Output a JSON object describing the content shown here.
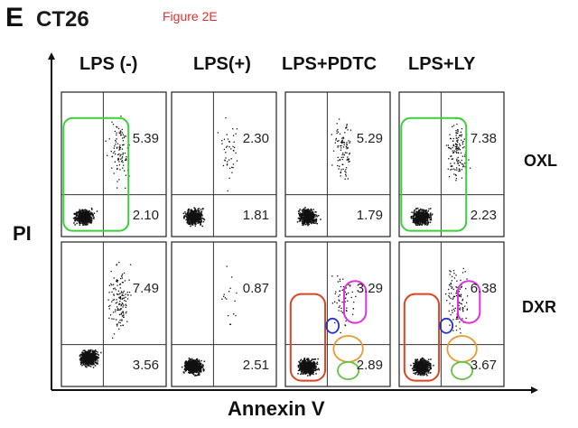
{
  "figure": {
    "panel_letter": "E",
    "cell_line": "CT26",
    "figure_ref": "Figure 2E",
    "y_axis_label": "PI",
    "x_axis_label": "Annexin V"
  },
  "columns": [
    "LPS (-)",
    "LPS(+)",
    "LPS+PDTC",
    "LPS+LY"
  ],
  "rows": [
    "OXL",
    "DXR"
  ],
  "colors": {
    "green_gate": "#3ccf3c",
    "red_gate": "#dd4422",
    "magenta_gate": "#dd33dd",
    "blue_gate": "#2233cc",
    "orange_gate": "#e89a33",
    "light_green_gate": "#66c244",
    "dots": "#111111"
  },
  "panels": [
    [
      {
        "upper_right": "5.39",
        "lower_right": "2.10",
        "gates": [
          "green"
        ]
      },
      {
        "upper_right": "2.30",
        "lower_right": "1.81",
        "gates": []
      },
      {
        "upper_right": "5.29",
        "lower_right": "1.79",
        "gates": []
      },
      {
        "upper_right": "7.38",
        "lower_right": "2.23",
        "gates": [
          "green"
        ]
      }
    ],
    [
      {
        "upper_right": "7.49",
        "lower_right": "3.56",
        "gates": []
      },
      {
        "upper_right": "0.87",
        "lower_right": "2.51",
        "gates": []
      },
      {
        "upper_right": "3.29",
        "lower_right": "2.89",
        "gates": [
          "red",
          "magenta",
          "blue",
          "orange",
          "light_green"
        ]
      },
      {
        "upper_right": "6.38",
        "lower_right": "3.67",
        "gates": [
          "red",
          "magenta",
          "blue",
          "orange",
          "light_green"
        ]
      }
    ]
  ]
}
